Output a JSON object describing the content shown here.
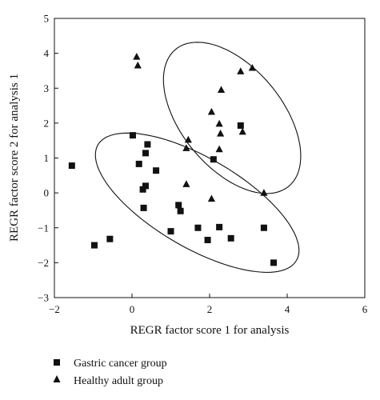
{
  "chart_data": {
    "type": "scatter",
    "xlabel": "REGR factor score 1 for analysis",
    "ylabel": "REGR factor score 2 for analysis 1",
    "xlim": [
      -2,
      6
    ],
    "ylim": [
      -3,
      5
    ],
    "xticks": [
      "−2",
      "0",
      "2",
      "4",
      "6"
    ],
    "yticks": [
      "5",
      "4",
      "3",
      "2",
      "1",
      "0",
      "−1",
      "−2",
      "−3"
    ],
    "grid": false,
    "legend_position": "bottom-left",
    "series": [
      {
        "name": "Gastric cancer group",
        "marker": "square",
        "color": "#111111",
        "points": [
          [
            -1.55,
            0.78
          ],
          [
            0.02,
            1.65
          ],
          [
            0.18,
            0.83
          ],
          [
            0.35,
            1.14
          ],
          [
            0.4,
            1.39
          ],
          [
            0.62,
            0.64
          ],
          [
            0.28,
            0.1
          ],
          [
            0.35,
            0.2
          ],
          [
            0.3,
            -0.43
          ],
          [
            -0.57,
            -1.32
          ],
          [
            -0.97,
            -1.5
          ],
          [
            1.0,
            -1.1
          ],
          [
            1.2,
            -0.35
          ],
          [
            1.25,
            -0.52
          ],
          [
            1.7,
            -1.0
          ],
          [
            1.95,
            -1.35
          ],
          [
            2.1,
            0.96
          ],
          [
            2.25,
            -0.98
          ],
          [
            2.55,
            -1.3
          ],
          [
            2.8,
            1.93
          ],
          [
            3.4,
            -1.0
          ],
          [
            3.65,
            -2.0
          ]
        ]
      },
      {
        "name": "Healthy adult group",
        "marker": "triangle",
        "color": "#111111",
        "points": [
          [
            0.12,
            3.9
          ],
          [
            0.15,
            3.65
          ],
          [
            1.45,
            1.52
          ],
          [
            1.4,
            1.28
          ],
          [
            1.4,
            0.25
          ],
          [
            2.05,
            2.32
          ],
          [
            2.05,
            -0.17
          ],
          [
            2.25,
            1.98
          ],
          [
            2.25,
            1.25
          ],
          [
            2.28,
            1.7
          ],
          [
            2.3,
            2.95
          ],
          [
            2.8,
            3.48
          ],
          [
            2.85,
            1.75
          ],
          [
            3.1,
            3.58
          ],
          [
            3.4,
            0.0
          ]
        ]
      }
    ],
    "ellipses": [
      {
        "group": "Gastric cancer group",
        "cx": 1.68,
        "cy": -0.28,
        "rx": 3.05,
        "ry": 1.25,
        "angle_deg": -34
      },
      {
        "group": "Healthy adult group",
        "cx": 2.58,
        "cy": 2.15,
        "rx": 2.45,
        "ry": 1.35,
        "angle_deg": -56
      }
    ]
  }
}
